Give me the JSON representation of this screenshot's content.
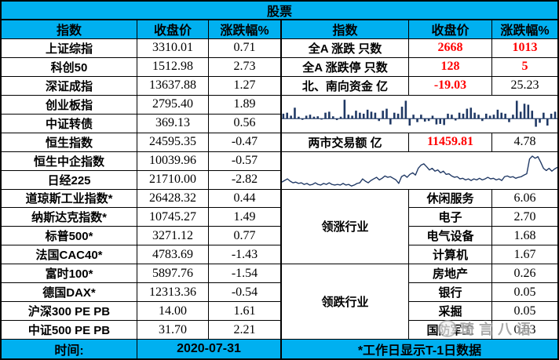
{
  "title": "股票",
  "colors": {
    "accent": "#00B0F0",
    "red": "#FF0000",
    "chart": "#1F3864"
  },
  "watermark": {
    "text": "琦言八语"
  },
  "left_table": {
    "headers": {
      "index": "指数",
      "close": "收盘价",
      "change": "涨跌幅%"
    },
    "rows": [
      {
        "name": "上证综指",
        "close": "3310.01",
        "chg": "0.71"
      },
      {
        "name": "科创50",
        "close": "1512.98",
        "chg": "2.73"
      },
      {
        "name": "深证成指",
        "close": "13637.88",
        "chg": "1.27"
      },
      {
        "name": "创业板指",
        "close": "2795.40",
        "chg": "1.89"
      },
      {
        "name": "中证转债",
        "close": "369.13",
        "chg": "0.56"
      },
      {
        "name": "恒生指数",
        "close": "24595.35",
        "chg": "-0.47"
      },
      {
        "name": "恒生中企指数",
        "close": "10039.96",
        "chg": "-0.57"
      },
      {
        "name": "日经225",
        "close": "21710.00",
        "chg": "-2.82"
      },
      {
        "name": "道琼斯工业指数*",
        "close": "26428.32",
        "chg": "0.44"
      },
      {
        "name": "纳斯达克指数*",
        "close": "10745.27",
        "chg": "1.49"
      },
      {
        "name": "标普500*",
        "close": "3271.12",
        "chg": "0.77"
      },
      {
        "name": "法国CAC40*",
        "close": "4783.69",
        "chg": "-1.43"
      },
      {
        "name": "富时100*",
        "close": "5897.76",
        "chg": "-1.54"
      },
      {
        "name": "德国DAX*",
        "close": "12313.36",
        "chg": "-0.54"
      },
      {
        "name": "沪深300 PE PB",
        "close": "14.00",
        "chg": "1.61"
      },
      {
        "name": "中证500 PE PB",
        "close": "31.70",
        "chg": "2.21"
      }
    ],
    "footer_label": "时间:",
    "footer_value": "2020-07-31"
  },
  "right_table": {
    "headers": {
      "index": "指数",
      "close": "收盘价",
      "change": "涨跌幅%"
    },
    "stat_rows": [
      {
        "name": "全A 涨跌 只数",
        "close": "2668",
        "chg": "1013"
      },
      {
        "name": "全A 涨跌停 只数",
        "close": "128",
        "chg": "5"
      },
      {
        "name": "北、南向资金 亿",
        "close": "-19.03",
        "chg": "25.23"
      }
    ],
    "turnover_row": {
      "name": "两市交易额 亿",
      "close": "11459.81",
      "chg": "4.78"
    },
    "sectors_up_label": "领涨行业",
    "sectors_up": [
      {
        "name": "休闲服务",
        "value": "6.06"
      },
      {
        "name": "电子",
        "value": "2.70"
      },
      {
        "name": "电气设备",
        "value": "1.68"
      },
      {
        "name": "计算机",
        "value": "1.67"
      }
    ],
    "sectors_down_label": "领跌行业",
    "sectors_down": [
      {
        "name": "房地产",
        "value": "0.26"
      },
      {
        "name": "银行",
        "value": "0.05"
      },
      {
        "name": "采掘",
        "value": "0.05"
      },
      {
        "name": "国防军工",
        "value": "0.03"
      }
    ],
    "footer": "*工作日显示T-1日数据"
  },
  "chart_data": [
    {
      "type": "bar",
      "title": "",
      "description_row_above": "北、南向资金 亿",
      "x": "trading days (unlabeled sparkline)",
      "units": "relative flow, -100..100, positive = up bar",
      "color": "#1F3864",
      "values": [
        25,
        30,
        15,
        55,
        10,
        -10,
        15,
        20,
        10,
        12,
        -8,
        30,
        35,
        12,
        -12,
        10,
        95,
        20,
        15,
        40,
        30,
        25,
        45,
        35,
        30,
        -20,
        40,
        50,
        -50,
        30,
        25,
        60,
        90,
        -60,
        20,
        -30,
        20,
        -25,
        -20,
        15,
        -50,
        -45,
        -55,
        25,
        20,
        -15,
        30,
        25,
        50,
        55,
        30,
        20,
        -20,
        25,
        15,
        20,
        45,
        30,
        25,
        -30,
        20,
        90,
        35,
        75,
        70,
        40,
        -70,
        -35,
        30,
        -60,
        25,
        35
      ]
    },
    {
      "type": "line",
      "title": "",
      "description_row_above": "两市交易额 亿",
      "x": "trading days (unlabeled sparkline)",
      "units": "relative level 0-100",
      "color": "#1F3864",
      "values": [
        14,
        19,
        24,
        17,
        12,
        14,
        10,
        12,
        7,
        10,
        5,
        7,
        12,
        7,
        5,
        10,
        7,
        12,
        7,
        5,
        7,
        5,
        10,
        5,
        7,
        2,
        5,
        10,
        12,
        24,
        17,
        12,
        19,
        24,
        29,
        21,
        26,
        33,
        29,
        31,
        26,
        21,
        10,
        31,
        36,
        29,
        38,
        43,
        36,
        57,
        67,
        71,
        62,
        52,
        57,
        48,
        52,
        43,
        48,
        38,
        40,
        33,
        29,
        31,
        24,
        26,
        21,
        24,
        19,
        24,
        21,
        26,
        21,
        24,
        29,
        24,
        26,
        21,
        24,
        19,
        31,
        33,
        29,
        31,
        26,
        29,
        31,
        36,
        40,
        86,
        95,
        88,
        93,
        76,
        57,
        50,
        57,
        48,
        55,
        60
      ]
    }
  ]
}
